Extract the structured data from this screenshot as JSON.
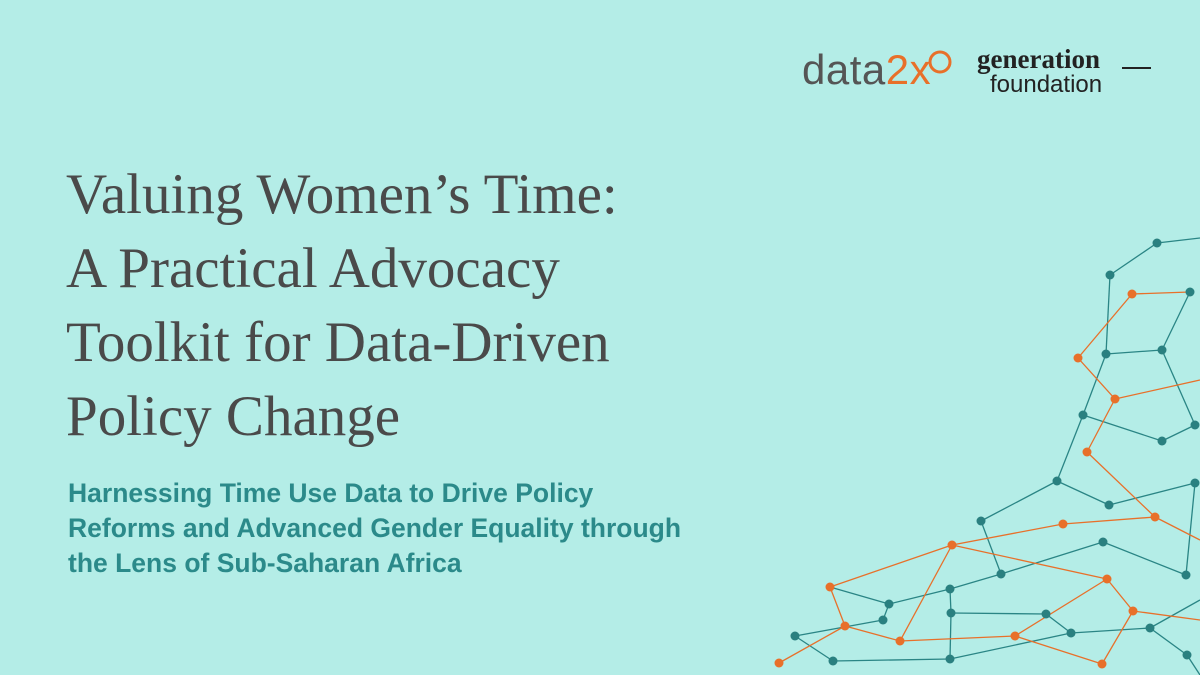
{
  "logos": {
    "data2x": {
      "part1": "data",
      "part2": "2x"
    },
    "generation_foundation": {
      "line1": "generation",
      "line2": "foundation"
    }
  },
  "title": {
    "lines": [
      "Valuing Women’s Time:",
      "A Practical Advocacy",
      "Toolkit for Data-Driven",
      "Policy Change"
    ]
  },
  "subtitle": {
    "lines": [
      "Harnessing Time Use Data to Drive Policy",
      "Reforms and Advanced Gender Equality through",
      "the Lens of Sub-Saharan Africa"
    ]
  }
}
